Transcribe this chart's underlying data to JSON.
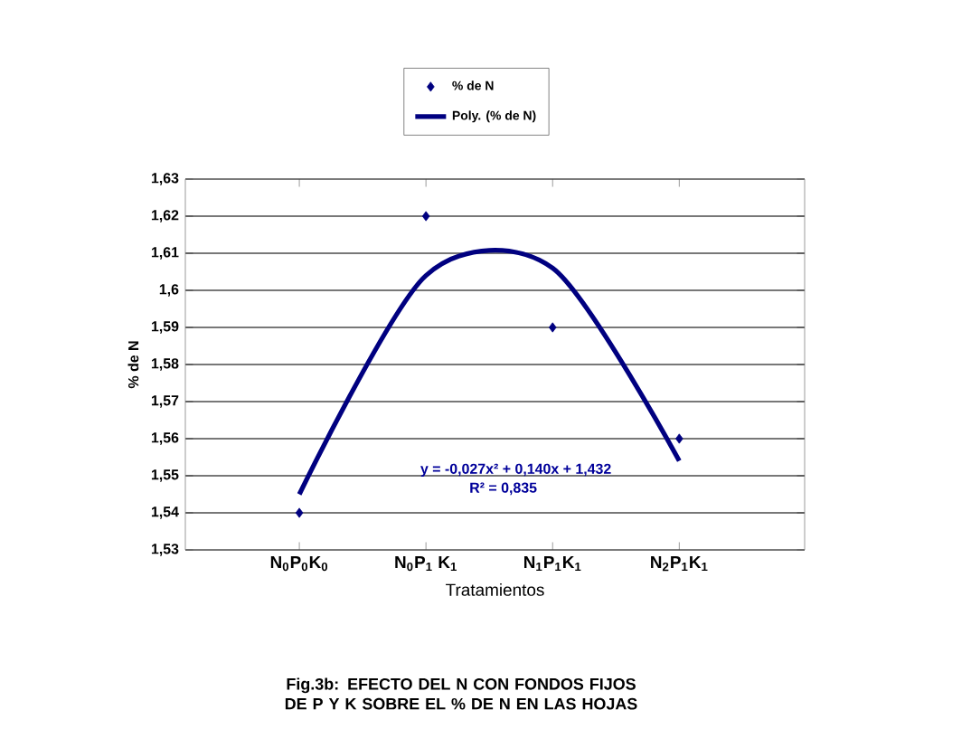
{
  "chart_data": {
    "type": "scatter",
    "title": "Fig.3b: EFECTO DEL N CON FONDOS FIJOS DE P Y K SOBRE EL % DE N EN LAS HOJAS",
    "xlabel": "Tratamientos",
    "ylabel": "% de N",
    "categories": [
      "N$_{0}$P$_{0}$K$_{0}$",
      "N$_{0}$P$_{1}$ K$_{1}$",
      "N$_{1}$P$_{1}$K$_{1}$",
      "N$_{2}$P$_{1}$K$_{1}$"
    ],
    "series": [
      {
        "name": "% de N",
        "color": "#000080",
        "values": [
          1.54,
          1.62,
          1.59,
          1.56
        ],
        "marker": "diamond"
      },
      {
        "name": "Poly. (% de N)",
        "type": "line",
        "color": "#000080",
        "values": [
          1.545,
          1.604,
          1.606,
          1.554
        ],
        "marker": "none"
      }
    ],
    "ylim": [
      1.53,
      1.63
    ],
    "yticks": [
      {
        "value": 1.53,
        "label": "1,53"
      },
      {
        "value": 1.54,
        "label": "1,54"
      },
      {
        "value": 1.55,
        "label": "1,55"
      },
      {
        "value": 1.56,
        "label": "1,56"
      },
      {
        "value": 1.57,
        "label": "1,57"
      },
      {
        "value": 1.58,
        "label": "1,58"
      },
      {
        "value": 1.59,
        "label": "1,59"
      },
      {
        "value": 1.6,
        "label": "1,6"
      },
      {
        "value": 1.61,
        "label": "1,61"
      },
      {
        "value": 1.62,
        "label": "1,62"
      },
      {
        "value": 1.63,
        "label": "1,63"
      }
    ],
    "grid": "y",
    "legend": "top",
    "annotations": [
      "y = -0,027x² + 0,140x + 1,432",
      "R² = 0,835"
    ]
  }
}
